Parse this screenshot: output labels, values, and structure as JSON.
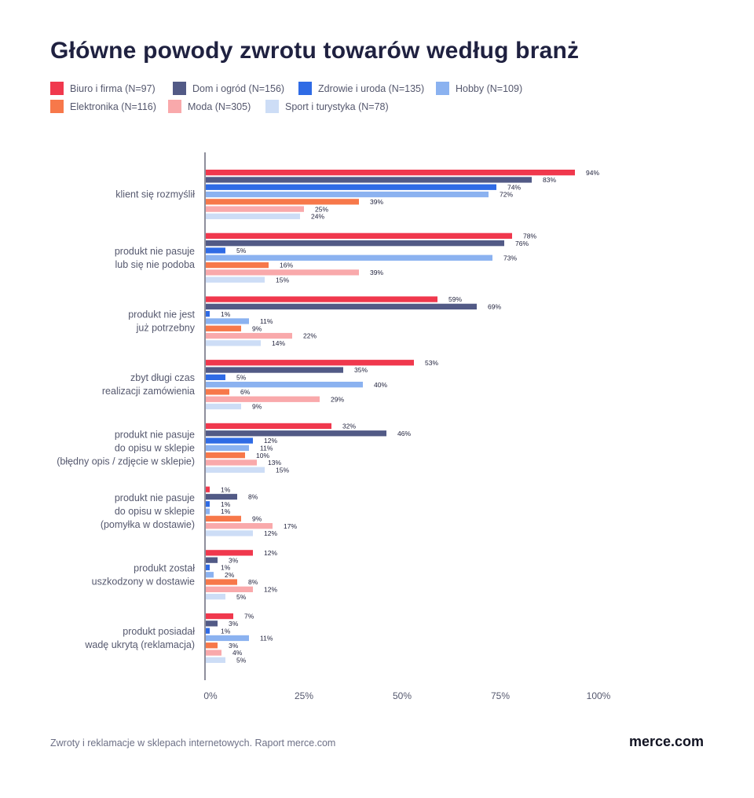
{
  "title": "Główne powody zwrotu towarów według branż",
  "footer": {
    "source": "Zwroty i reklamacje w sklepach internetowych. Raport merce.com",
    "brand": "merce.com"
  },
  "chart_data": {
    "type": "bar",
    "orientation": "horizontal",
    "xlim": [
      0,
      100
    ],
    "ticks": [
      "0%",
      "25%",
      "50%",
      "75%",
      "100%"
    ],
    "grid": false,
    "legend_position": "top",
    "categories": [
      [
        "klient się rozmyślił"
      ],
      [
        "produkt nie pasuje",
        "lub się nie podoba"
      ],
      [
        "produkt nie jest",
        "już potrzebny"
      ],
      [
        "zbyt długi czas",
        "realizacji zamówienia"
      ],
      [
        "produkt nie pasuje",
        "do opisu w sklepie",
        "(błędny opis / zdjęcie w sklepie)"
      ],
      [
        "produkt nie pasuje",
        "do opisu w sklepie",
        "(pomyłka w dostawie)"
      ],
      [
        "produkt został",
        "uszkodzony w dostawie"
      ],
      [
        "produkt posiadał",
        "wadę ukrytą (reklamacja)"
      ]
    ],
    "series": [
      {
        "name": "Biuro i firma (N=97)",
        "color": "#f0384d",
        "values": [
          94,
          78,
          59,
          53,
          32,
          1,
          12,
          7
        ]
      },
      {
        "name": "Dom i ogród (N=156)",
        "color": "#525a86",
        "values": [
          83,
          76,
          69,
          35,
          46,
          8,
          3,
          3
        ]
      },
      {
        "name": "Zdrowie i uroda (N=135)",
        "color": "#2f6be5",
        "values": [
          74,
          5,
          1,
          5,
          12,
          1,
          1,
          1
        ]
      },
      {
        "name": "Hobby (N=109)",
        "color": "#8bb2f0",
        "values": [
          72,
          73,
          11,
          40,
          11,
          1,
          2,
          11
        ]
      },
      {
        "name": "Elektronika (N=116)",
        "color": "#f7784a",
        "values": [
          39,
          16,
          9,
          6,
          10,
          9,
          8,
          3
        ]
      },
      {
        "name": "Moda (N=305)",
        "color": "#f9a9ab",
        "values": [
          25,
          39,
          22,
          29,
          13,
          17,
          12,
          4
        ]
      },
      {
        "name": "Sport i turystyka (N=78)",
        "color": "#cdddf6",
        "values": [
          24,
          15,
          14,
          9,
          15,
          12,
          5,
          5
        ]
      }
    ]
  }
}
